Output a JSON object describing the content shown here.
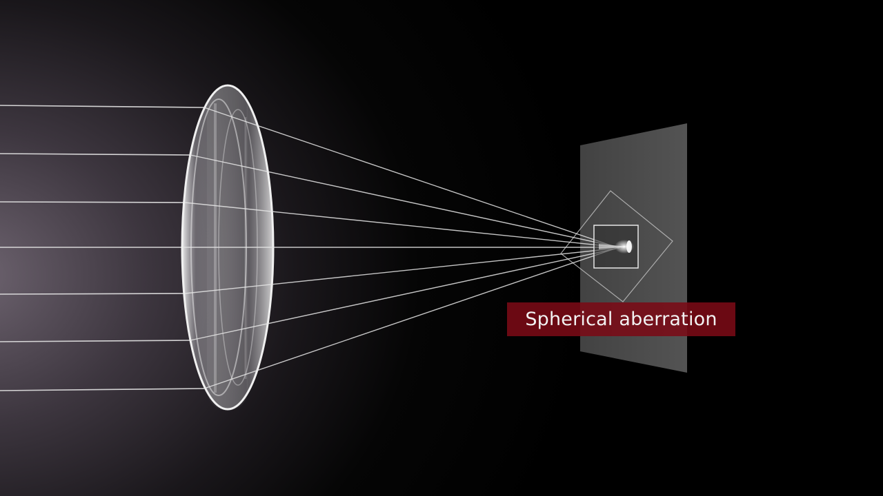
{
  "caption": "Spherical aberration",
  "colors": {
    "ray": "#e6e6e6",
    "caption_bg": "#7a0a16",
    "caption_text": "#f2f2f2",
    "screen": "#5a5a5a"
  },
  "rays": {
    "count": 7
  }
}
